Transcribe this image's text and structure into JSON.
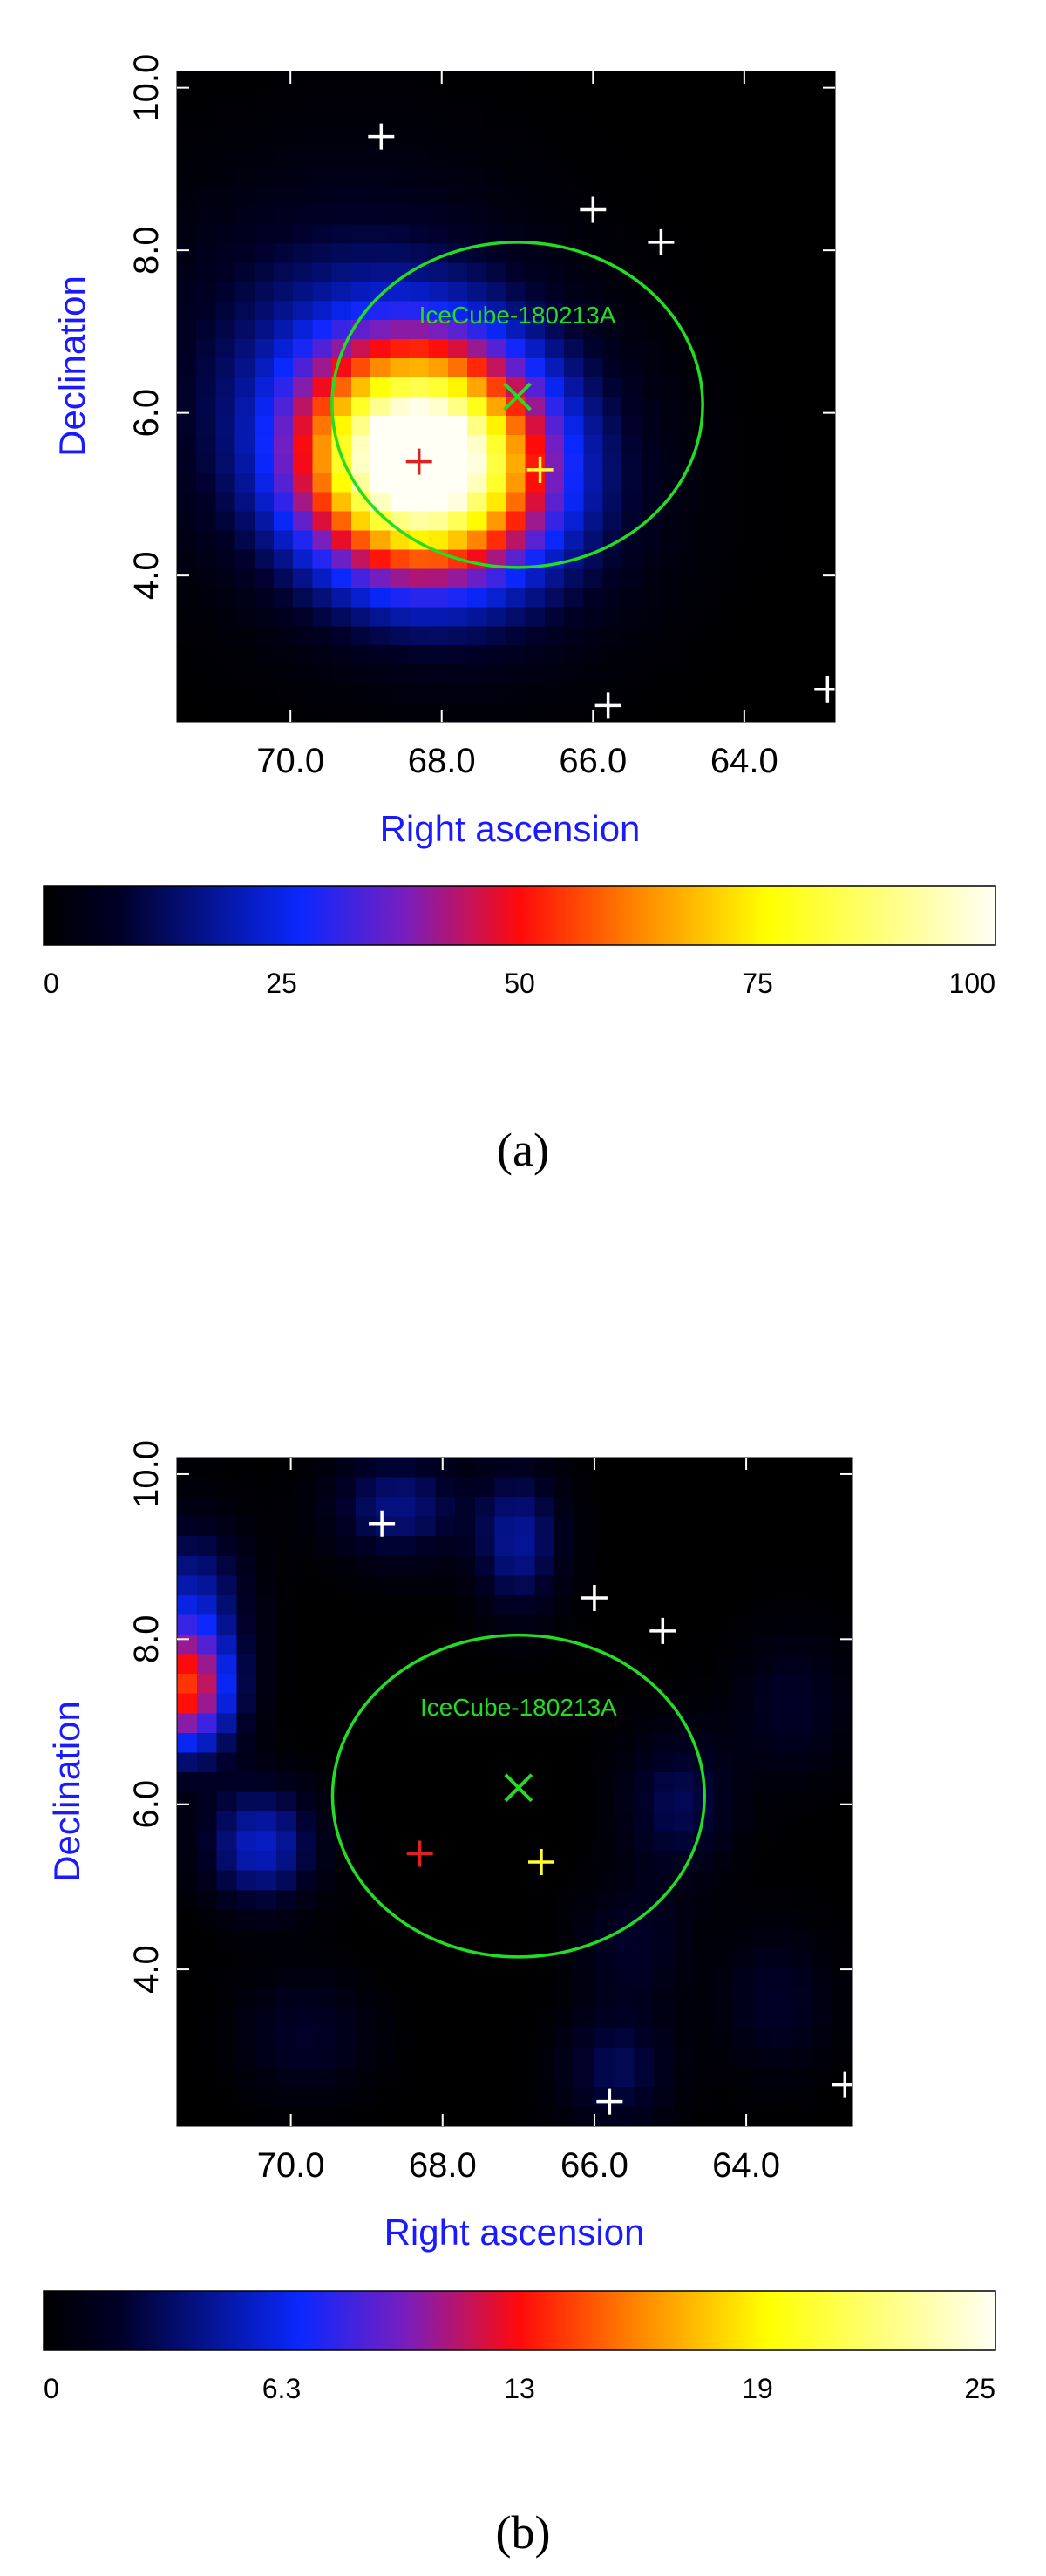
{
  "chart_data": [
    {
      "type": "heatmap",
      "panel_label": "(a)",
      "xlabel": "Right ascension",
      "ylabel": "Declination",
      "xlim": [
        71.5,
        62.8
      ],
      "ylim": [
        2.2,
        10.2
      ],
      "x_ticks": [
        {
          "value": 70.0,
          "label": "70.0"
        },
        {
          "value": 68.0,
          "label": "68.0"
        },
        {
          "value": 66.0,
          "label": "66.0"
        },
        {
          "value": 64.0,
          "label": "64.0"
        }
      ],
      "y_ticks": [
        {
          "value": 4.0,
          "label": "4.0"
        },
        {
          "value": 6.0,
          "label": "6.0"
        },
        {
          "value": 8.0,
          "label": "8.0"
        },
        {
          "value": 10.0,
          "label": "10.0"
        }
      ],
      "colorbar": {
        "min": 0,
        "max": 100,
        "ticks": [
          {
            "value": 0,
            "label": "0"
          },
          {
            "value": 25,
            "label": "25"
          },
          {
            "value": 50,
            "label": "50"
          },
          {
            "value": 75,
            "label": "75"
          },
          {
            "value": 100,
            "label": "100"
          }
        ]
      },
      "blobs": [
        {
          "ra": 68.3,
          "dec": 5.4,
          "sigma_ra": 1.05,
          "sigma_dec": 0.95,
          "amp": 100
        },
        {
          "ra": 69.2,
          "dec": 6.4,
          "sigma_ra": 1.6,
          "sigma_dec": 1.5,
          "amp": 18
        },
        {
          "ra": 67.2,
          "dec": 5.0,
          "sigma_ra": 1.3,
          "sigma_dec": 1.2,
          "amp": 14
        }
      ],
      "ellipse": {
        "ra": 67.0,
        "dec": 6.1,
        "half_width_ra": 2.45,
        "half_height_dec": 2.0,
        "label": "IceCube-180213A",
        "color": "#22dd22"
      },
      "best_fit": {
        "ra": 67.0,
        "dec": 6.2,
        "color": "#22dd22"
      },
      "markers": [
        {
          "ra": 68.8,
          "dec": 9.4,
          "color": "#ffffff"
        },
        {
          "ra": 66.0,
          "dec": 8.5,
          "color": "#ffffff"
        },
        {
          "ra": 65.1,
          "dec": 8.1,
          "color": "#ffffff"
        },
        {
          "ra": 65.8,
          "dec": 2.4,
          "color": "#ffffff"
        },
        {
          "ra": 62.9,
          "dec": 2.6,
          "color": "#ffffff"
        },
        {
          "ra": 68.3,
          "dec": 5.4,
          "color": "#dd2222"
        },
        {
          "ra": 66.7,
          "dec": 5.3,
          "color": "#ffff33"
        }
      ]
    },
    {
      "type": "heatmap",
      "panel_label": "(b)",
      "xlabel": "Right ascension",
      "ylabel": "Declination",
      "xlim": [
        71.5,
        62.6
      ],
      "ylim": [
        2.1,
        10.2
      ],
      "x_ticks": [
        {
          "value": 70.0,
          "label": "70.0"
        },
        {
          "value": 68.0,
          "label": "68.0"
        },
        {
          "value": 66.0,
          "label": "66.0"
        },
        {
          "value": 64.0,
          "label": "64.0"
        }
      ],
      "y_ticks": [
        {
          "value": 4.0,
          "label": "4.0"
        },
        {
          "value": 6.0,
          "label": "6.0"
        },
        {
          "value": 8.0,
          "label": "8.0"
        },
        {
          "value": 10.0,
          "label": "10.0"
        }
      ],
      "colorbar": {
        "min": 0,
        "max": 25,
        "ticks": [
          {
            "value": 0,
            "label": "0"
          },
          {
            "value": 6.25,
            "label": "6.3"
          },
          {
            "value": 12.5,
            "label": "13"
          },
          {
            "value": 18.75,
            "label": "19"
          },
          {
            "value": 25,
            "label": "25"
          }
        ]
      },
      "blobs": [
        {
          "ra": 71.4,
          "dec": 7.4,
          "sigma_ra": 0.45,
          "sigma_dec": 0.55,
          "amp": 13
        },
        {
          "ra": 70.4,
          "dec": 5.5,
          "sigma_ra": 0.5,
          "sigma_dec": 0.5,
          "amp": 5.5
        },
        {
          "ra": 71.3,
          "dec": 8.6,
          "sigma_ra": 0.5,
          "sigma_dec": 0.6,
          "amp": 4
        },
        {
          "ra": 68.6,
          "dec": 9.6,
          "sigma_ra": 0.6,
          "sigma_dec": 0.45,
          "amp": 4
        },
        {
          "ra": 67.0,
          "dec": 9.2,
          "sigma_ra": 0.4,
          "sigma_dec": 0.6,
          "amp": 4.5
        },
        {
          "ra": 64.9,
          "dec": 6.0,
          "sigma_ra": 0.5,
          "sigma_dec": 0.6,
          "amp": 3
        },
        {
          "ra": 65.7,
          "dec": 2.8,
          "sigma_ra": 0.5,
          "sigma_dec": 0.5,
          "amp": 3
        },
        {
          "ra": 63.6,
          "dec": 3.6,
          "sigma_ra": 0.5,
          "sigma_dec": 0.6,
          "amp": 2
        },
        {
          "ra": 69.8,
          "dec": 3.2,
          "sigma_ra": 0.6,
          "sigma_dec": 0.5,
          "amp": 2
        },
        {
          "ra": 65.5,
          "dec": 4.3,
          "sigma_ra": 0.5,
          "sigma_dec": 0.5,
          "amp": 2
        },
        {
          "ra": 63.4,
          "dec": 7.2,
          "sigma_ra": 0.5,
          "sigma_dec": 0.6,
          "amp": 2
        }
      ],
      "ellipse": {
        "ra": 67.0,
        "dec": 6.1,
        "half_width_ra": 2.45,
        "half_height_dec": 1.95,
        "label": "IceCube-180213A",
        "color": "#22dd22"
      },
      "best_fit": {
        "ra": 67.0,
        "dec": 6.2,
        "color": "#22dd22"
      },
      "markers": [
        {
          "ra": 68.8,
          "dec": 9.4,
          "color": "#ffffff"
        },
        {
          "ra": 66.0,
          "dec": 8.5,
          "color": "#ffffff"
        },
        {
          "ra": 65.1,
          "dec": 8.1,
          "color": "#ffffff"
        },
        {
          "ra": 65.8,
          "dec": 2.4,
          "color": "#ffffff"
        },
        {
          "ra": 62.7,
          "dec": 2.6,
          "color": "#ffffff"
        },
        {
          "ra": 68.3,
          "dec": 5.4,
          "color": "#dd2222"
        },
        {
          "ra": 66.7,
          "dec": 5.3,
          "color": "#ffff33"
        }
      ]
    }
  ]
}
